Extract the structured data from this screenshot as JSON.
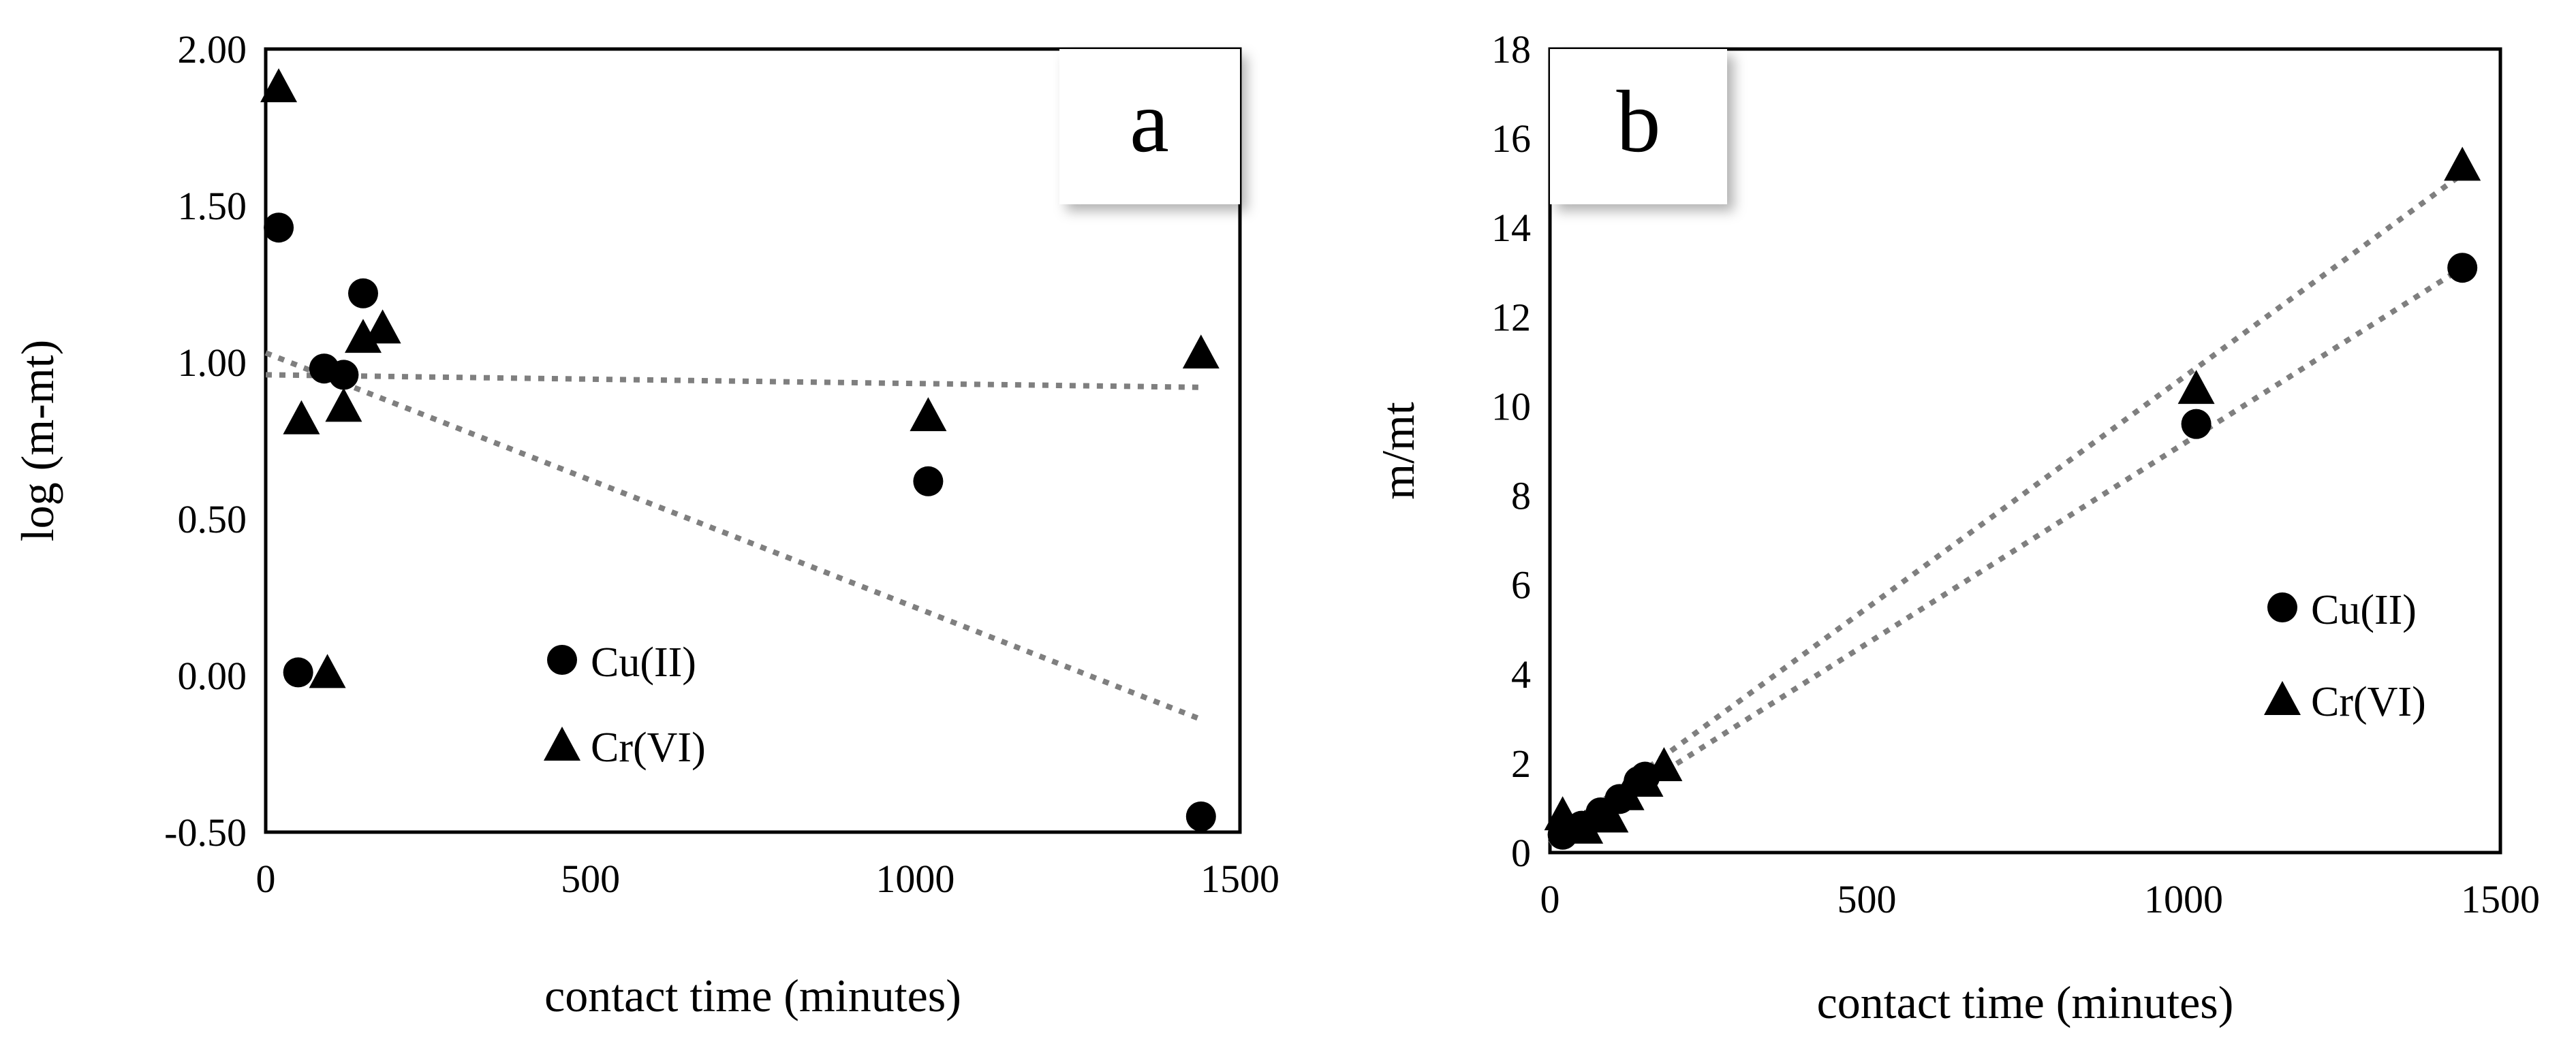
{
  "chart_data": [
    {
      "type": "scatter",
      "panel_label": "a",
      "xlabel": "contact time (minutes)",
      "ylabel": "log (m-mt)",
      "xlim": [
        0,
        1500
      ],
      "ylim": [
        -0.5,
        2.0
      ],
      "xticks": [
        0,
        500,
        1000,
        1500
      ],
      "xtick_labels": [
        "0",
        "500",
        "1000",
        "1500"
      ],
      "yticks": [
        -0.5,
        0.0,
        0.5,
        1.0,
        1.5,
        2.0
      ],
      "ytick_labels": [
        "-0.50",
        "0.00",
        "0.50",
        "1.00",
        "1.50",
        "2.00"
      ],
      "grid": false,
      "legend_position": "lower-middle",
      "series": [
        {
          "name": "Cu(II)",
          "marker": "circle",
          "x": [
            20,
            50,
            90,
            120,
            150,
            1020,
            1440
          ],
          "y": [
            1.43,
            0.01,
            0.98,
            0.96,
            1.22,
            0.62,
            -0.45
          ]
        },
        {
          "name": "Cr(VI)",
          "marker": "triangle",
          "x": [
            20,
            55,
            95,
            120,
            150,
            180,
            1020,
            1440
          ],
          "y": [
            1.88,
            0.82,
            0.01,
            0.86,
            1.08,
            1.11,
            0.83,
            1.03
          ]
        }
      ],
      "trendlines": [
        {
          "series": "Cu(II)",
          "x": [
            0,
            1440
          ],
          "y": [
            1.03,
            -0.14
          ]
        },
        {
          "series": "Cr(VI)",
          "x": [
            0,
            1440
          ],
          "y": [
            0.96,
            0.92
          ]
        }
      ]
    },
    {
      "type": "scatter",
      "panel_label": "b",
      "xlabel": "contact time (minutes)",
      "ylabel": "m/mt",
      "xlim": [
        0,
        1500
      ],
      "ylim": [
        0,
        18
      ],
      "xticks": [
        0,
        500,
        1000,
        1500
      ],
      "xtick_labels": [
        "0",
        "500",
        "1000",
        "1500"
      ],
      "yticks": [
        0,
        2,
        4,
        6,
        8,
        10,
        12,
        14,
        16,
        18
      ],
      "ytick_labels": [
        "0",
        "2",
        "4",
        "6",
        "8",
        "10",
        "12",
        "14",
        "16",
        "18"
      ],
      "grid": false,
      "legend_position": "right",
      "series": [
        {
          "name": "Cu(II)",
          "marker": "circle",
          "x": [
            20,
            50,
            80,
            110,
            140,
            150,
            1020,
            1440
          ],
          "y": [
            0.4,
            0.6,
            0.9,
            1.2,
            1.6,
            1.7,
            9.6,
            13.1
          ]
        },
        {
          "name": "Cr(VI)",
          "marker": "triangle",
          "x": [
            20,
            55,
            95,
            120,
            150,
            180,
            1020,
            1440
          ],
          "y": [
            0.85,
            0.55,
            0.8,
            1.3,
            1.6,
            1.95,
            10.4,
            15.4
          ]
        }
      ],
      "trendlines": [
        {
          "series": "Cu(II)",
          "x": [
            0,
            1440
          ],
          "y": [
            0.2,
            13.1
          ]
        },
        {
          "series": "Cr(VI)",
          "x": [
            0,
            1440
          ],
          "y": [
            0.3,
            15.2
          ]
        }
      ]
    }
  ]
}
